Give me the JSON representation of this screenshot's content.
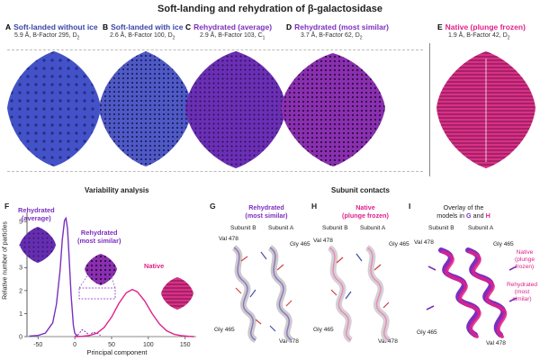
{
  "title": "Soft-landing and rehydration of β-galactosidase",
  "top_panels": [
    {
      "letter": "A",
      "name": "Soft-landed without ice",
      "stats": "5.9 Å, B-Factor 295, D",
      "sub": "2",
      "color": "#3a45a8",
      "fill": "#4352c8"
    },
    {
      "letter": "B",
      "name": "Soft-landed with ice",
      "stats": "2.6 Å, B-Factor 100, D",
      "sub": "2",
      "color": "#3a45a8",
      "fill": "#4a55c0"
    },
    {
      "letter": "C",
      "name": "Rehydrated (average)",
      "stats": "2.9 Å, B-Factor 103, C",
      "sub": "1",
      "color": "#7b2fbf",
      "fill": "#6a2fb5"
    },
    {
      "letter": "D",
      "name": "Rehydrated (most similar)",
      "stats": "3.7 Å, B-Factor 62, D",
      "sub": "2",
      "color": "#7b2fbf",
      "fill": "#7a2aa8"
    },
    {
      "letter": "E",
      "name": "Native (plunge frozen)",
      "stats": "1.9 Å, B-Factor 42, D",
      "sub": "2",
      "color": "#e0218a",
      "fill": "#d4277f"
    }
  ],
  "panel_f": {
    "letter": "F",
    "heading": "Variability analysis",
    "label_avg": [
      "Rehydrated",
      "(average)"
    ],
    "label_sim": [
      "Rehydrated",
      "(most similar)"
    ],
    "label_native": "Native",
    "colors": {
      "avg": "#7b2fbf",
      "native": "#e0218a"
    }
  },
  "chart_data": {
    "type": "line",
    "xlabel": "Principal component",
    "ylabel": "Relative number of particles",
    "xlim": [
      -65,
      165
    ],
    "ylim": [
      0,
      5.4
    ],
    "xticks": [
      -50,
      0,
      50,
      100,
      150
    ],
    "yticks": [
      0,
      1,
      2,
      3,
      4,
      5
    ],
    "series": [
      {
        "name": "Rehydrated (average)",
        "color": "#7b2fbf",
        "x": [
          -62,
          -50,
          -40,
          -30,
          -25,
          -20,
          -17,
          -14,
          -12,
          -10,
          -8,
          -5,
          -2,
          0,
          3,
          8
        ],
        "y": [
          0.02,
          0.05,
          0.15,
          0.6,
          1.4,
          2.9,
          4.2,
          5.05,
          5.15,
          4.7,
          3.6,
          1.8,
          0.5,
          0.15,
          0.03,
          0
        ]
      },
      {
        "name": "Rehydrated (most similar)",
        "color": "#7b2fbf",
        "x": [
          0,
          5,
          10,
          15,
          20,
          25,
          30,
          35
        ],
        "y": [
          0,
          0.1,
          0.3,
          0.2,
          0.05,
          0.2,
          0.15,
          0.05
        ]
      },
      {
        "name": "Native",
        "color": "#e0218a",
        "x": [
          0,
          10,
          20,
          30,
          40,
          50,
          60,
          70,
          78,
          85,
          95,
          105,
          115,
          125,
          135,
          145,
          155,
          162
        ],
        "y": [
          0,
          0.01,
          0.05,
          0.15,
          0.4,
          0.85,
          1.45,
          1.9,
          2.05,
          1.95,
          1.55,
          1.0,
          0.55,
          0.25,
          0.1,
          0.04,
          0.01,
          0
        ]
      }
    ]
  },
  "contacts_heading": "Subunit contacts",
  "panel_g": {
    "letter": "G",
    "name": [
      "Rehydrated",
      "(most similar)"
    ],
    "subB": "Subunit B",
    "subA": "Subunit A",
    "labels": [
      "Val 478",
      "Gly 465",
      "Gly 465",
      "Val 478"
    ]
  },
  "panel_h": {
    "letter": "H",
    "name": [
      "Native",
      "(plunge frozen)"
    ],
    "subB": "Subunit B",
    "subA": "Subunit A",
    "labels": [
      "Val 478",
      "Gly 465",
      "Gly 465",
      "Val 478"
    ]
  },
  "panel_i": {
    "letter": "I",
    "name1": "Overlay of the",
    "name2_pre": "models in ",
    "g": "G",
    "and": " and ",
    "h": "H",
    "subB": "Subunit B",
    "subA": "Subunit A",
    "labels": [
      "Val 478",
      "Gly 465",
      "Gly 465",
      "Val 478"
    ],
    "legend_native": [
      "Native",
      "(plunge",
      "frozen)"
    ],
    "legend_rehyd": [
      "Rehydrated",
      "(most",
      "similar)"
    ]
  }
}
